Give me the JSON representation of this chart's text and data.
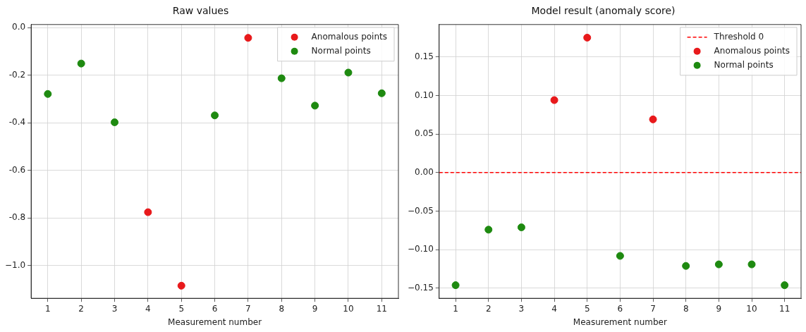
{
  "chart_data": [
    {
      "type": "scatter",
      "title": "Raw values",
      "xlabel": "Measurement number",
      "xlim": [
        0.5,
        11.5
      ],
      "xticks": [
        1,
        2,
        3,
        4,
        5,
        6,
        7,
        8,
        9,
        10,
        11
      ],
      "ylim": [
        -1.138,
        0.013
      ],
      "yticks": [
        {
          "value": 0,
          "label": "0.0"
        },
        -0.2,
        -0.4,
        -0.6,
        -0.8,
        {
          "value": -1,
          "label": "−1.0"
        }
      ],
      "grid": true,
      "legend": "top right",
      "marker": "circle",
      "series": [
        {
          "name": "Anomalous points",
          "color": "#e8191b",
          "x": [
            4,
            5,
            7
          ],
          "values": [
            -0.776,
            -1.085,
            -0.043
          ]
        },
        {
          "name": "Normal points",
          "color": "#1e8a10",
          "x": [
            1,
            2,
            3,
            6,
            8,
            9,
            10,
            11
          ],
          "values": [
            -0.279,
            -0.151,
            -0.398,
            -0.369,
            -0.213,
            -0.328,
            -0.189,
            -0.276
          ]
        }
      ]
    },
    {
      "type": "scatter",
      "title": "Model result (anomaly score)",
      "xlabel": "Measurement number",
      "xlim": [
        0.5,
        11.5
      ],
      "xticks": [
        1,
        2,
        3,
        4,
        5,
        6,
        7,
        8,
        9,
        10,
        11
      ],
      "ylim": [
        -0.163,
        0.192
      ],
      "yticks": [
        {
          "value": 0.15,
          "label": "0.15"
        },
        {
          "value": 0.1,
          "label": "0.10"
        },
        {
          "value": 0.05,
          "label": "0.05"
        },
        {
          "value": 0,
          "label": "0.00"
        },
        {
          "value": -0.05,
          "label": "−0.05"
        },
        {
          "value": -0.1,
          "label": "−0.10"
        },
        {
          "value": -0.15,
          "label": "−0.15"
        }
      ],
      "grid": true,
      "legend": "top right",
      "marker": "circle",
      "ref_lines": [
        {
          "axis": "y",
          "value": 0,
          "label": "Threshold 0",
          "color": "#ff0000",
          "line_style": "dashed"
        }
      ],
      "series": [
        {
          "name": "Anomalous points",
          "color": "#e8191b",
          "x": [
            4,
            5,
            7
          ],
          "values": [
            0.094,
            0.175,
            0.069
          ]
        },
        {
          "name": "Normal points",
          "color": "#1e8a10",
          "x": [
            1,
            2,
            3,
            6,
            8,
            9,
            10,
            11
          ],
          "values": [
            -0.146,
            -0.074,
            -0.071,
            -0.108,
            -0.121,
            -0.119,
            -0.119,
            -0.146
          ]
        }
      ]
    }
  ]
}
